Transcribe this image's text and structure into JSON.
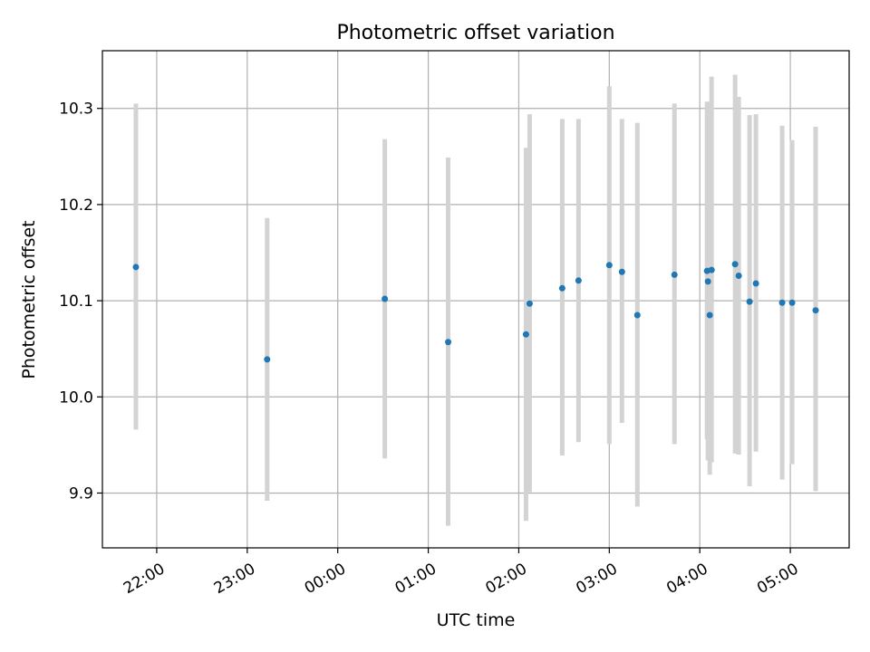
{
  "chart_data": {
    "type": "scatter",
    "title": "Photometric offset variation",
    "xlabel": "UTC time",
    "ylabel": "Photometric offset",
    "grid": true,
    "x_unit": "hours since 22:00",
    "xlim": [
      -0.6,
      7.65
    ],
    "ylim": [
      9.843,
      10.36
    ],
    "x_ticks": [
      {
        "value": 0,
        "label": "22:00"
      },
      {
        "value": 1,
        "label": "23:00"
      },
      {
        "value": 2,
        "label": "00:00"
      },
      {
        "value": 3,
        "label": "01:00"
      },
      {
        "value": 4,
        "label": "02:00"
      },
      {
        "value": 5,
        "label": "03:00"
      },
      {
        "value": 6,
        "label": "04:00"
      },
      {
        "value": 7,
        "label": "05:00"
      }
    ],
    "y_ticks": [
      {
        "value": 9.9,
        "label": "9.9"
      },
      {
        "value": 10.0,
        "label": "10.0"
      },
      {
        "value": 10.1,
        "label": "10.1"
      },
      {
        "value": 10.2,
        "label": "10.2"
      },
      {
        "value": 10.3,
        "label": "10.3"
      }
    ],
    "series": [
      {
        "name": "photometric offset",
        "marker_color": "#1f77b4",
        "errorbar_color": "#d3d3d3",
        "points": [
          {
            "x": -0.23,
            "y": 10.135,
            "low": 9.966,
            "high": 10.305
          },
          {
            "x": 1.22,
            "y": 10.039,
            "low": 9.892,
            "high": 10.186
          },
          {
            "x": 2.52,
            "y": 10.102,
            "low": 9.936,
            "high": 10.268
          },
          {
            "x": 3.22,
            "y": 10.057,
            "low": 9.866,
            "high": 10.249
          },
          {
            "x": 4.08,
            "y": 10.065,
            "low": 9.871,
            "high": 10.259
          },
          {
            "x": 4.12,
            "y": 10.097,
            "low": 9.901,
            "high": 10.294
          },
          {
            "x": 4.48,
            "y": 10.113,
            "low": 9.939,
            "high": 10.289
          },
          {
            "x": 4.66,
            "y": 10.121,
            "low": 9.953,
            "high": 10.289
          },
          {
            "x": 5.0,
            "y": 10.137,
            "low": 9.951,
            "high": 10.323
          },
          {
            "x": 5.14,
            "y": 10.13,
            "low": 9.973,
            "high": 10.289
          },
          {
            "x": 5.31,
            "y": 10.085,
            "low": 9.886,
            "high": 10.285
          },
          {
            "x": 5.72,
            "y": 10.127,
            "low": 9.951,
            "high": 10.305
          },
          {
            "x": 6.08,
            "y": 10.131,
            "low": 9.956,
            "high": 10.307
          },
          {
            "x": 6.09,
            "y": 10.12,
            "low": 9.934,
            "high": 10.306
          },
          {
            "x": 6.11,
            "y": 10.085,
            "low": 9.919,
            "high": 10.307
          },
          {
            "x": 6.13,
            "y": 10.132,
            "low": 9.932,
            "high": 10.333
          },
          {
            "x": 6.39,
            "y": 10.138,
            "low": 9.941,
            "high": 10.335
          },
          {
            "x": 6.43,
            "y": 10.126,
            "low": 9.94,
            "high": 10.312
          },
          {
            "x": 6.55,
            "y": 10.099,
            "low": 9.907,
            "high": 10.293
          },
          {
            "x": 6.62,
            "y": 10.118,
            "low": 9.943,
            "high": 10.294
          },
          {
            "x": 6.91,
            "y": 10.098,
            "low": 9.914,
            "high": 10.282
          },
          {
            "x": 7.02,
            "y": 10.098,
            "low": 9.93,
            "high": 10.267
          },
          {
            "x": 7.28,
            "y": 10.09,
            "low": 9.902,
            "high": 10.281
          }
        ]
      }
    ]
  }
}
